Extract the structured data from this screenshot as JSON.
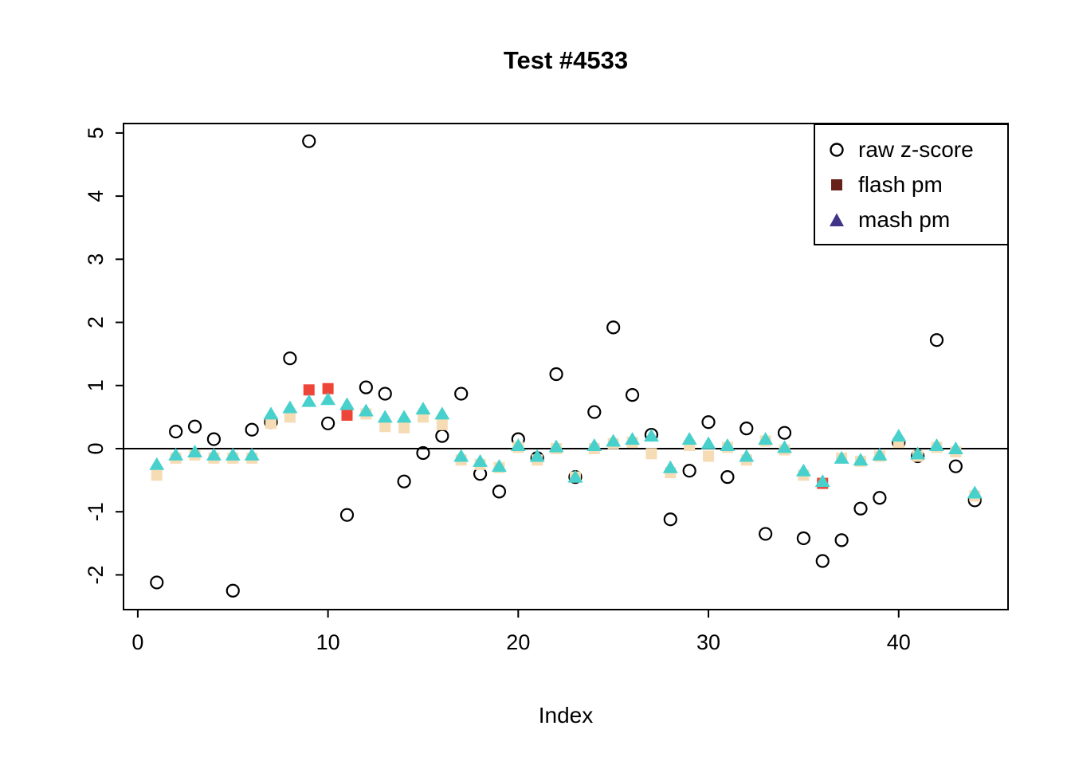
{
  "title": "Test #4533",
  "xlabel": "Index",
  "legend": {
    "items": [
      {
        "label": "raw z-score",
        "symbol": "circle-open",
        "color": "#000000"
      },
      {
        "label": "flash pm",
        "symbol": "square-filled",
        "color": "#67201A"
      },
      {
        "label": "mash pm",
        "symbol": "triangle-filled",
        "color": "#403488"
      }
    ]
  },
  "chart_data": {
    "type": "scatter",
    "title": "Test #4533",
    "xlabel": "Index",
    "ylabel": "",
    "xlim": [
      -0.75,
      45.75
    ],
    "ylim": [
      -2.55,
      5.15
    ],
    "xticks": [
      0,
      10,
      20,
      30,
      40
    ],
    "yticks": [
      -2,
      -1,
      0,
      1,
      2,
      3,
      4,
      5
    ],
    "hline": 0,
    "grid": false,
    "legend_position": "top-right",
    "x": [
      1,
      2,
      3,
      4,
      5,
      6,
      7,
      8,
      9,
      10,
      11,
      12,
      13,
      14,
      15,
      16,
      17,
      18,
      19,
      20,
      21,
      22,
      23,
      24,
      25,
      26,
      27,
      28,
      29,
      30,
      31,
      32,
      33,
      34,
      35,
      36,
      37,
      38,
      39,
      40,
      41,
      42,
      43,
      44
    ],
    "series": [
      {
        "name": "raw z-score",
        "marker": "circle-open",
        "color": "#000000",
        "values": [
          -2.12,
          0.27,
          0.35,
          0.15,
          -2.25,
          0.3,
          0.42,
          1.43,
          4.87,
          0.4,
          -1.05,
          0.97,
          0.87,
          -0.52,
          -0.07,
          0.2,
          0.87,
          -0.4,
          -0.68,
          0.15,
          -0.15,
          1.18,
          -0.45,
          0.58,
          1.92,
          0.85,
          0.22,
          -1.12,
          -0.35,
          0.42,
          -0.45,
          0.32,
          -1.35,
          0.25,
          -1.42,
          -1.78,
          -1.45,
          -0.95,
          -0.78,
          0.1,
          -0.12,
          1.72,
          -0.28,
          -0.82
        ]
      },
      {
        "name": "flash pm",
        "marker": "square-filled",
        "color": "#F6DCB4",
        "highlight_color": "#EF4438",
        "highlight_x": [
          9,
          10,
          11,
          36
        ],
        "values": [
          -0.42,
          -0.15,
          -0.1,
          -0.15,
          -0.15,
          -0.15,
          0.4,
          0.5,
          0.93,
          0.95,
          0.53,
          0.55,
          0.35,
          0.33,
          0.5,
          0.38,
          -0.18,
          -0.25,
          -0.3,
          0.02,
          -0.18,
          0.0,
          -0.45,
          0.0,
          0.08,
          0.1,
          -0.08,
          -0.38,
          0.05,
          -0.12,
          0.02,
          -0.18,
          0.12,
          -0.02,
          -0.42,
          -0.55,
          -0.15,
          -0.2,
          -0.12,
          0.1,
          -0.12,
          0.02,
          -0.05,
          -0.75
        ]
      },
      {
        "name": "mash pm",
        "marker": "triangle-filled",
        "color": "#48D1CC",
        "values": [
          -0.25,
          -0.1,
          -0.05,
          -0.1,
          -0.1,
          -0.1,
          0.55,
          0.65,
          0.75,
          0.78,
          0.7,
          0.6,
          0.5,
          0.5,
          0.63,
          0.55,
          -0.12,
          -0.2,
          -0.28,
          0.05,
          -0.12,
          0.03,
          -0.45,
          0.05,
          0.12,
          0.15,
          0.2,
          -0.3,
          0.15,
          0.08,
          0.05,
          -0.12,
          0.15,
          0.02,
          -0.35,
          -0.52,
          -0.15,
          -0.18,
          -0.1,
          0.2,
          -0.08,
          0.05,
          0.0,
          -0.7
        ]
      }
    ]
  }
}
